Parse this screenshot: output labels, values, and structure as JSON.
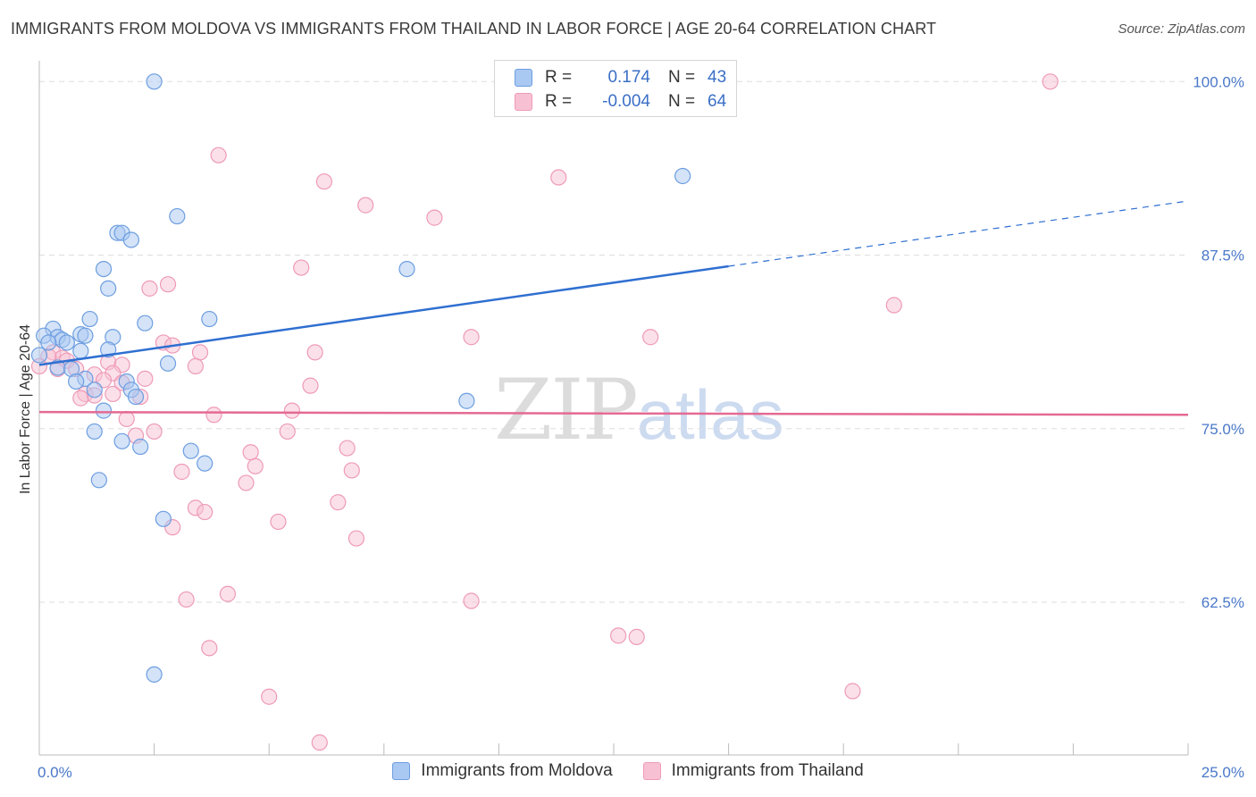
{
  "header": {
    "title": "IMMIGRANTS FROM MOLDOVA VS IMMIGRANTS FROM THAILAND IN LABOR FORCE | AGE 20-64 CORRELATION CHART",
    "source": "Source: ZipAtlas.com"
  },
  "watermark": {
    "zip": "ZIP",
    "atlas": "atlas"
  },
  "stats": [
    {
      "r_label": "R =",
      "r_value": "0.174",
      "n_label": "N =",
      "n_value": "43"
    },
    {
      "r_label": "R =",
      "r_value": "-0.004",
      "n_label": "N =",
      "n_value": "64"
    }
  ],
  "colors": {
    "moldova_fill": "#a9c8f2",
    "moldova_stroke": "#6d9ee0",
    "moldova_line": "#2f6fd1",
    "thailand_fill": "#f7c1d3",
    "thailand_stroke": "#ee9ab8",
    "thailand_line": "#e46a93",
    "tick": "#4a78c8",
    "grid": "#dddddd"
  },
  "chart_data": {
    "type": "scatter",
    "title": "IMMIGRANTS FROM MOLDOVA VS IMMIGRANTS FROM THAILAND IN LABOR FORCE | AGE 20-64 CORRELATION CHART",
    "xlabel": "",
    "ylabel": "In Labor Force | Age 20-64",
    "xlim": [
      0,
      25
    ],
    "ylim": [
      51.5,
      101.5
    ],
    "x_tick_labels": [
      "0.0%",
      "25.0%"
    ],
    "y_ticks": [
      62.5,
      75.0,
      87.5,
      100.0
    ],
    "y_tick_labels": [
      "62.5%",
      "75.0%",
      "87.5%",
      "100.0%"
    ],
    "grid": true,
    "series": [
      {
        "name": "Immigrants from Moldova",
        "r": 0.174,
        "n": 43,
        "trend": {
          "x_start": 0,
          "y_start": 79.6,
          "x_solid_end": 15,
          "y_solid_end": 86.7,
          "x_end": 25,
          "y_end": 91.4
        },
        "points": [
          [
            2.5,
            100.0
          ],
          [
            14.0,
            93.2
          ],
          [
            3.0,
            90.3
          ],
          [
            1.7,
            89.1
          ],
          [
            1.8,
            89.1
          ],
          [
            2.0,
            88.6
          ],
          [
            8.0,
            86.5
          ],
          [
            1.4,
            86.5
          ],
          [
            1.5,
            85.1
          ],
          [
            2.3,
            82.6
          ],
          [
            3.7,
            82.9
          ],
          [
            1.1,
            82.9
          ],
          [
            0.3,
            82.2
          ],
          [
            0.1,
            81.7
          ],
          [
            0.4,
            81.6
          ],
          [
            0.5,
            81.4
          ],
          [
            0.9,
            81.8
          ],
          [
            1.0,
            81.7
          ],
          [
            1.6,
            81.6
          ],
          [
            0.2,
            81.2
          ],
          [
            0.6,
            81.2
          ],
          [
            1.5,
            80.7
          ],
          [
            0.9,
            80.6
          ],
          [
            0.0,
            80.3
          ],
          [
            2.8,
            79.7
          ],
          [
            0.4,
            79.4
          ],
          [
            0.7,
            79.3
          ],
          [
            1.0,
            78.6
          ],
          [
            0.8,
            78.4
          ],
          [
            1.9,
            78.4
          ],
          [
            1.2,
            77.8
          ],
          [
            2.0,
            77.8
          ],
          [
            2.1,
            77.3
          ],
          [
            9.3,
            77.0
          ],
          [
            1.4,
            76.3
          ],
          [
            1.2,
            74.8
          ],
          [
            1.8,
            74.1
          ],
          [
            2.2,
            73.7
          ],
          [
            3.3,
            73.4
          ],
          [
            3.6,
            72.5
          ],
          [
            1.3,
            71.3
          ],
          [
            2.7,
            68.5
          ],
          [
            2.5,
            57.3
          ]
        ]
      },
      {
        "name": "Immigrants from Thailand",
        "r": -0.004,
        "n": 64,
        "trend": {
          "x_start": 0,
          "y_start": 76.2,
          "x_end": 25,
          "y_end": 76.0
        },
        "points": [
          [
            22.0,
            100.0
          ],
          [
            3.9,
            94.7
          ],
          [
            6.2,
            92.8
          ],
          [
            11.3,
            93.1
          ],
          [
            7.1,
            91.1
          ],
          [
            8.6,
            90.2
          ],
          [
            5.7,
            86.6
          ],
          [
            2.8,
            85.4
          ],
          [
            2.4,
            85.1
          ],
          [
            18.6,
            83.9
          ],
          [
            0.3,
            80.5
          ],
          [
            0.5,
            80.1
          ],
          [
            9.4,
            81.6
          ],
          [
            13.3,
            81.6
          ],
          [
            2.7,
            81.2
          ],
          [
            2.9,
            81.0
          ],
          [
            3.5,
            80.5
          ],
          [
            6.0,
            80.5
          ],
          [
            0.2,
            80.2
          ],
          [
            0.6,
            79.9
          ],
          [
            1.5,
            79.8
          ],
          [
            1.8,
            79.6
          ],
          [
            3.4,
            79.5
          ],
          [
            0.4,
            79.3
          ],
          [
            0.8,
            79.3
          ],
          [
            1.6,
            79.0
          ],
          [
            1.2,
            78.9
          ],
          [
            1.4,
            78.5
          ],
          [
            2.3,
            78.6
          ],
          [
            1.8,
            78.3
          ],
          [
            5.9,
            78.1
          ],
          [
            1.0,
            77.5
          ],
          [
            2.2,
            77.3
          ],
          [
            1.6,
            77.5
          ],
          [
            1.2,
            77.4
          ],
          [
            0.9,
            77.2
          ],
          [
            5.5,
            76.3
          ],
          [
            3.8,
            76.0
          ],
          [
            1.9,
            75.7
          ],
          [
            5.4,
            74.8
          ],
          [
            2.5,
            74.8
          ],
          [
            2.1,
            74.5
          ],
          [
            6.7,
            73.6
          ],
          [
            4.6,
            73.3
          ],
          [
            4.7,
            72.3
          ],
          [
            6.8,
            72.0
          ],
          [
            3.1,
            71.9
          ],
          [
            4.5,
            71.1
          ],
          [
            6.5,
            69.7
          ],
          [
            3.4,
            69.3
          ],
          [
            3.6,
            69.0
          ],
          [
            5.2,
            68.3
          ],
          [
            2.9,
            67.9
          ],
          [
            6.9,
            67.1
          ],
          [
            4.1,
            63.1
          ],
          [
            3.2,
            62.7
          ],
          [
            9.4,
            62.6
          ],
          [
            12.6,
            60.1
          ],
          [
            13.0,
            60.0
          ],
          [
            3.7,
            59.2
          ],
          [
            5.0,
            55.7
          ],
          [
            17.7,
            56.1
          ],
          [
            6.1,
            52.4
          ],
          [
            0.0,
            79.5
          ]
        ]
      }
    ]
  },
  "legend": {
    "moldova_label": "Immigrants from Moldova",
    "thailand_label": "Immigrants from Thailand"
  }
}
